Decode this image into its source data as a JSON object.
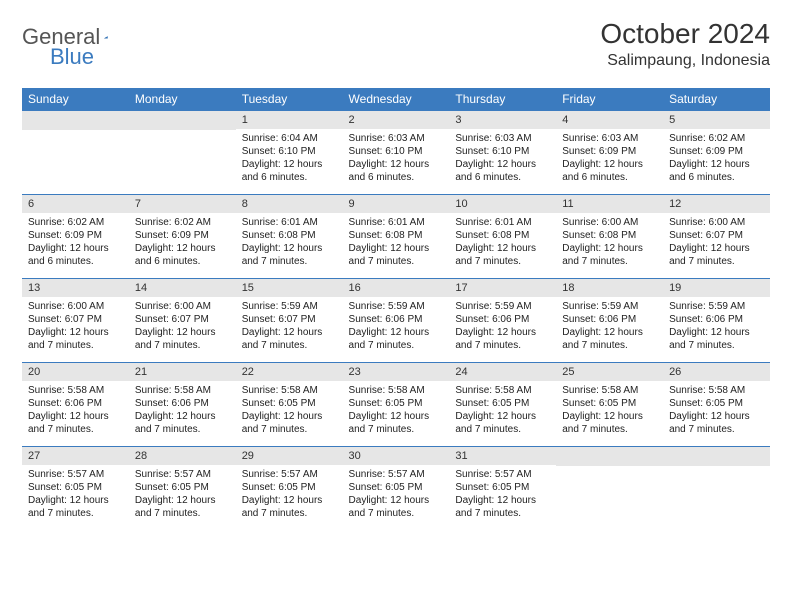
{
  "colors": {
    "header_blue": "#3b7bbf",
    "daynum_bg": "#e6e6e6",
    "text": "#333333",
    "border": "#3b7bbf"
  },
  "logo": {
    "general": "General",
    "blue": "Blue"
  },
  "title": "October 2024",
  "location": "Salimpaung, Indonesia",
  "weekdays": [
    "Sunday",
    "Monday",
    "Tuesday",
    "Wednesday",
    "Thursday",
    "Friday",
    "Saturday"
  ],
  "labels": {
    "sunrise": "Sunrise:",
    "sunset": "Sunset:",
    "daylight": "Daylight:"
  },
  "weeks": [
    [
      {
        "empty": true
      },
      {
        "empty": true
      },
      {
        "num": "1",
        "sunrise": "6:04 AM",
        "sunset": "6:10 PM",
        "daylight": "12 hours and 6 minutes."
      },
      {
        "num": "2",
        "sunrise": "6:03 AM",
        "sunset": "6:10 PM",
        "daylight": "12 hours and 6 minutes."
      },
      {
        "num": "3",
        "sunrise": "6:03 AM",
        "sunset": "6:10 PM",
        "daylight": "12 hours and 6 minutes."
      },
      {
        "num": "4",
        "sunrise": "6:03 AM",
        "sunset": "6:09 PM",
        "daylight": "12 hours and 6 minutes."
      },
      {
        "num": "5",
        "sunrise": "6:02 AM",
        "sunset": "6:09 PM",
        "daylight": "12 hours and 6 minutes."
      }
    ],
    [
      {
        "num": "6",
        "sunrise": "6:02 AM",
        "sunset": "6:09 PM",
        "daylight": "12 hours and 6 minutes."
      },
      {
        "num": "7",
        "sunrise": "6:02 AM",
        "sunset": "6:09 PM",
        "daylight": "12 hours and 6 minutes."
      },
      {
        "num": "8",
        "sunrise": "6:01 AM",
        "sunset": "6:08 PM",
        "daylight": "12 hours and 7 minutes."
      },
      {
        "num": "9",
        "sunrise": "6:01 AM",
        "sunset": "6:08 PM",
        "daylight": "12 hours and 7 minutes."
      },
      {
        "num": "10",
        "sunrise": "6:01 AM",
        "sunset": "6:08 PM",
        "daylight": "12 hours and 7 minutes."
      },
      {
        "num": "11",
        "sunrise": "6:00 AM",
        "sunset": "6:08 PM",
        "daylight": "12 hours and 7 minutes."
      },
      {
        "num": "12",
        "sunrise": "6:00 AM",
        "sunset": "6:07 PM",
        "daylight": "12 hours and 7 minutes."
      }
    ],
    [
      {
        "num": "13",
        "sunrise": "6:00 AM",
        "sunset": "6:07 PM",
        "daylight": "12 hours and 7 minutes."
      },
      {
        "num": "14",
        "sunrise": "6:00 AM",
        "sunset": "6:07 PM",
        "daylight": "12 hours and 7 minutes."
      },
      {
        "num": "15",
        "sunrise": "5:59 AM",
        "sunset": "6:07 PM",
        "daylight": "12 hours and 7 minutes."
      },
      {
        "num": "16",
        "sunrise": "5:59 AM",
        "sunset": "6:06 PM",
        "daylight": "12 hours and 7 minutes."
      },
      {
        "num": "17",
        "sunrise": "5:59 AM",
        "sunset": "6:06 PM",
        "daylight": "12 hours and 7 minutes."
      },
      {
        "num": "18",
        "sunrise": "5:59 AM",
        "sunset": "6:06 PM",
        "daylight": "12 hours and 7 minutes."
      },
      {
        "num": "19",
        "sunrise": "5:59 AM",
        "sunset": "6:06 PM",
        "daylight": "12 hours and 7 minutes."
      }
    ],
    [
      {
        "num": "20",
        "sunrise": "5:58 AM",
        "sunset": "6:06 PM",
        "daylight": "12 hours and 7 minutes."
      },
      {
        "num": "21",
        "sunrise": "5:58 AM",
        "sunset": "6:06 PM",
        "daylight": "12 hours and 7 minutes."
      },
      {
        "num": "22",
        "sunrise": "5:58 AM",
        "sunset": "6:05 PM",
        "daylight": "12 hours and 7 minutes."
      },
      {
        "num": "23",
        "sunrise": "5:58 AM",
        "sunset": "6:05 PM",
        "daylight": "12 hours and 7 minutes."
      },
      {
        "num": "24",
        "sunrise": "5:58 AM",
        "sunset": "6:05 PM",
        "daylight": "12 hours and 7 minutes."
      },
      {
        "num": "25",
        "sunrise": "5:58 AM",
        "sunset": "6:05 PM",
        "daylight": "12 hours and 7 minutes."
      },
      {
        "num": "26",
        "sunrise": "5:58 AM",
        "sunset": "6:05 PM",
        "daylight": "12 hours and 7 minutes."
      }
    ],
    [
      {
        "num": "27",
        "sunrise": "5:57 AM",
        "sunset": "6:05 PM",
        "daylight": "12 hours and 7 minutes."
      },
      {
        "num": "28",
        "sunrise": "5:57 AM",
        "sunset": "6:05 PM",
        "daylight": "12 hours and 7 minutes."
      },
      {
        "num": "29",
        "sunrise": "5:57 AM",
        "sunset": "6:05 PM",
        "daylight": "12 hours and 7 minutes."
      },
      {
        "num": "30",
        "sunrise": "5:57 AM",
        "sunset": "6:05 PM",
        "daylight": "12 hours and 7 minutes."
      },
      {
        "num": "31",
        "sunrise": "5:57 AM",
        "sunset": "6:05 PM",
        "daylight": "12 hours and 7 minutes."
      },
      {
        "empty": true
      },
      {
        "empty": true
      }
    ]
  ]
}
